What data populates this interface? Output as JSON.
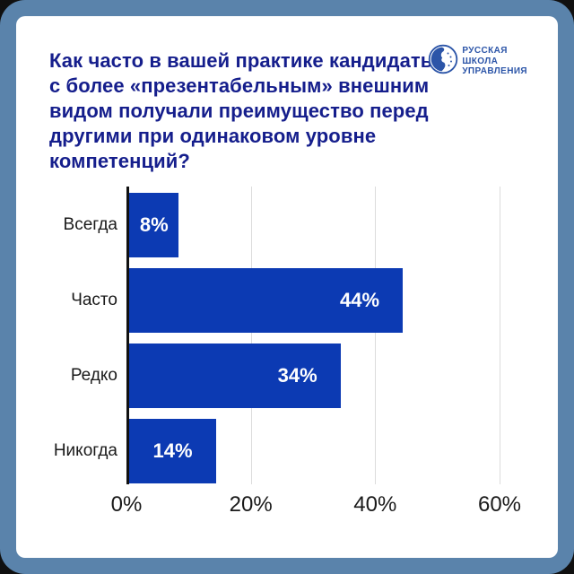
{
  "page": {
    "backdrop_color": "#101010",
    "frame_color": "#5A83AB",
    "card_color": "#ffffff"
  },
  "title": {
    "color": "#151E8C",
    "lines": [
      "Как часто в вашей практике кандидаты",
      "с более «презентабельным» внешним",
      "видом получали преимущество перед",
      "другими при одинаковом уровне компетенций?"
    ]
  },
  "logo": {
    "lines": [
      "РУССКАЯ",
      "ШКОЛА",
      "УПРАВЛЕНИЯ"
    ],
    "color": "#2C55A8"
  },
  "chart_data": {
    "type": "bar",
    "orientation": "horizontal",
    "categories": [
      "Всегда",
      "Часто",
      "Редко",
      "Никогда"
    ],
    "values": [
      8,
      44,
      34,
      14
    ],
    "value_labels": [
      "8%",
      "44%",
      "34%",
      "14%"
    ],
    "x_ticks": [
      "0%",
      "20%",
      "40%",
      "60%"
    ],
    "x_tick_values": [
      0,
      20,
      40,
      60
    ],
    "xlim": [
      0,
      60
    ],
    "bar_color": "#0C3AB3",
    "value_label_color": "#ffffff",
    "axis_color": "#111111",
    "grid_color": "#DCDCDC",
    "grid": true,
    "legend": false,
    "title": "",
    "xlabel": "",
    "ylabel": ""
  }
}
